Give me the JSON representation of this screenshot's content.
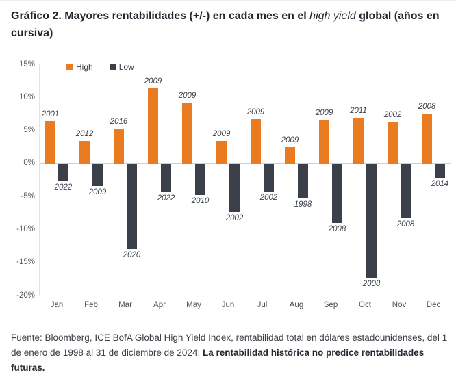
{
  "title": {
    "part1": "Gráfico 2. Mayores rentabilidades (+/-) en cada mes en el ",
    "italic": "high yield",
    "part2": " global (años en cursiva)"
  },
  "chart_data": {
    "type": "bar",
    "title": "Mayores rentabilidades (+/-) en cada mes en el high yield global",
    "categories": [
      "Jan",
      "Feb",
      "Mar",
      "Apr",
      "May",
      "Jun",
      "Jul",
      "Aug",
      "Sep",
      "Oct",
      "Nov",
      "Dec"
    ],
    "series": [
      {
        "name": "High",
        "color": "#eb7b21",
        "values": [
          6.4,
          3.4,
          5.3,
          11.4,
          9.2,
          3.4,
          6.7,
          2.5,
          6.6,
          6.9,
          6.3,
          7.5
        ],
        "year_labels": [
          "2001",
          "2012",
          "2016",
          "2009",
          "2009",
          "2009",
          "2009",
          "2009",
          "2009",
          "2011",
          "2002",
          "2008"
        ]
      },
      {
        "name": "Low",
        "color": "#3b3f4a",
        "values": [
          -2.6,
          -3.3,
          -12.9,
          -4.3,
          -4.7,
          -7.3,
          -4.2,
          -5.2,
          -8.9,
          -17.2,
          -8.2,
          -2.1
        ],
        "year_labels": [
          "2022",
          "2009",
          "2020",
          "2022",
          "2010",
          "2002",
          "2002",
          "1998",
          "2008",
          "2008",
          "2008",
          "2014"
        ]
      }
    ],
    "ylim": [
      -20,
      15
    ],
    "yticks": [
      15,
      10,
      5,
      0,
      -5,
      -10,
      -15,
      -20
    ],
    "ytick_labels": [
      "15%",
      "10%",
      "5%",
      "0%",
      "-5%",
      "-10%",
      "-15%",
      "-20%"
    ],
    "xlabel": "",
    "ylabel": "",
    "grid": false,
    "legend_position": "inside-top-left"
  },
  "source": {
    "normal": "Fuente: Bloomberg, ICE BofA Global High Yield Index, rentabilidad total en dólares estadounidenses, del 1 de enero de 1998 al 31 de diciembre de 2024. ",
    "bold": "La rentabilidad histórica no predice rentabilidades futuras."
  },
  "colors": {
    "high_bar": "#eb7b21",
    "low_bar": "#3b3f4a",
    "zero_line": "#cfcfcf",
    "axis_line": "#e4e4e4",
    "tick_text": "#595959",
    "year_text": "#3d424c",
    "title_text": "#21272f"
  }
}
